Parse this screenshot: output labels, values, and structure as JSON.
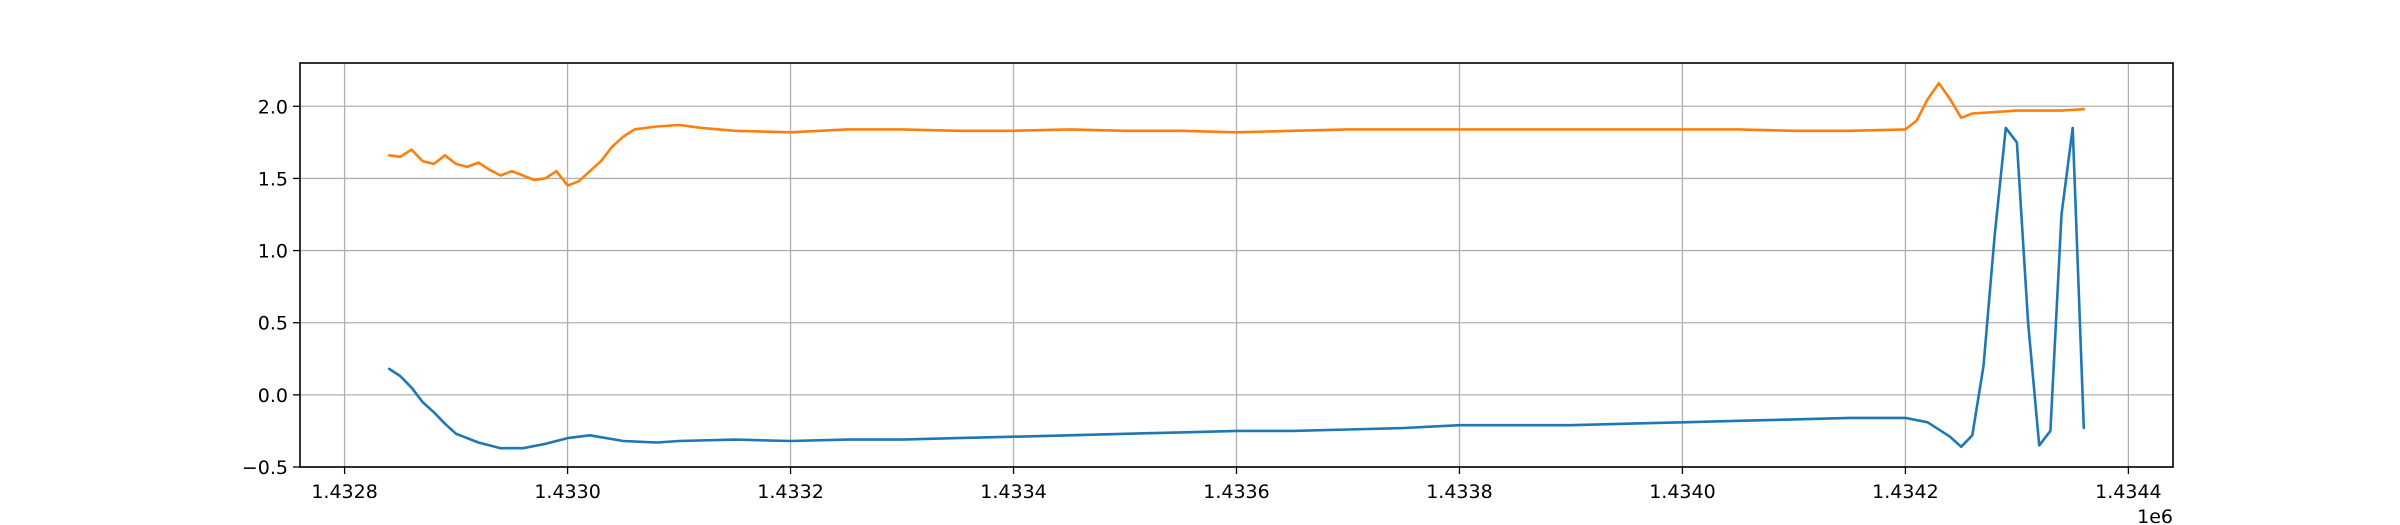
{
  "chart_data": {
    "type": "line",
    "title": "",
    "xlabel": "",
    "ylabel": "",
    "x_offset_label": "1e6",
    "xlim": [
      1.43276,
      1.43444
    ],
    "ylim": [
      -0.5,
      2.3
    ],
    "grid": true,
    "legend": "none",
    "x_ticks": [
      1.4328,
      1.433,
      1.4332,
      1.4334,
      1.4336,
      1.4338,
      1.434,
      1.4342,
      1.4344
    ],
    "x_tick_labels": [
      "1.4328",
      "1.4330",
      "1.4332",
      "1.4334",
      "1.4336",
      "1.4338",
      "1.4340",
      "1.4342",
      "1.4344"
    ],
    "y_ticks": [
      -0.5,
      0.0,
      0.5,
      1.0,
      1.5,
      2.0
    ],
    "y_tick_labels": [
      "−0.5",
      "0.0",
      "0.5",
      "1.0",
      "1.5",
      "2.0"
    ],
    "series": [
      {
        "color": "#1f77b4",
        "x": [
          1.43284,
          1.43285,
          1.43286,
          1.43287,
          1.43288,
          1.43289,
          1.4329,
          1.43292,
          1.43294,
          1.43296,
          1.43298,
          1.433,
          1.43302,
          1.43305,
          1.43308,
          1.4331,
          1.43315,
          1.4332,
          1.43325,
          1.4333,
          1.43335,
          1.4334,
          1.43345,
          1.4335,
          1.43355,
          1.4336,
          1.43365,
          1.4337,
          1.43375,
          1.4338,
          1.43385,
          1.4339,
          1.43395,
          1.434,
          1.43405,
          1.4341,
          1.43415,
          1.4342,
          1.43422,
          1.43424,
          1.43425,
          1.43426,
          1.43427,
          1.43428,
          1.43429,
          1.4343,
          1.43431,
          1.43432,
          1.43433,
          1.43434,
          1.43435,
          1.43436
        ],
        "y": [
          0.18,
          0.13,
          0.05,
          -0.05,
          -0.12,
          -0.2,
          -0.27,
          -0.33,
          -0.37,
          -0.37,
          -0.34,
          -0.3,
          -0.28,
          -0.32,
          -0.33,
          -0.32,
          -0.31,
          -0.32,
          -0.31,
          -0.31,
          -0.3,
          -0.29,
          -0.28,
          -0.27,
          -0.26,
          -0.25,
          -0.25,
          -0.24,
          -0.23,
          -0.21,
          -0.21,
          -0.21,
          -0.2,
          -0.19,
          -0.18,
          -0.17,
          -0.16,
          -0.16,
          -0.19,
          -0.29,
          -0.36,
          -0.28,
          0.2,
          1.1,
          1.85,
          1.75,
          0.5,
          -0.35,
          -0.25,
          1.25,
          1.85,
          -0.23
        ]
      },
      {
        "color": "#ff7f0e",
        "x": [
          1.43284,
          1.43285,
          1.43286,
          1.43287,
          1.43288,
          1.43289,
          1.4329,
          1.43291,
          1.43292,
          1.43293,
          1.43294,
          1.43295,
          1.43296,
          1.43297,
          1.43298,
          1.43299,
          1.433,
          1.43301,
          1.43302,
          1.43303,
          1.43304,
          1.43305,
          1.43306,
          1.43308,
          1.4331,
          1.43312,
          1.43315,
          1.4332,
          1.43325,
          1.4333,
          1.43335,
          1.4334,
          1.43345,
          1.4335,
          1.43355,
          1.4336,
          1.43365,
          1.4337,
          1.43375,
          1.4338,
          1.43385,
          1.4339,
          1.43395,
          1.434,
          1.43405,
          1.4341,
          1.43415,
          1.4342,
          1.43421,
          1.43422,
          1.43423,
          1.43424,
          1.43425,
          1.43426,
          1.43428,
          1.4343,
          1.43432,
          1.43434,
          1.43436
        ],
        "y": [
          1.66,
          1.65,
          1.7,
          1.62,
          1.6,
          1.66,
          1.6,
          1.58,
          1.61,
          1.56,
          1.52,
          1.55,
          1.52,
          1.49,
          1.5,
          1.55,
          1.45,
          1.48,
          1.55,
          1.62,
          1.72,
          1.79,
          1.84,
          1.86,
          1.87,
          1.85,
          1.83,
          1.82,
          1.84,
          1.84,
          1.83,
          1.83,
          1.84,
          1.83,
          1.83,
          1.82,
          1.83,
          1.84,
          1.84,
          1.84,
          1.84,
          1.84,
          1.84,
          1.84,
          1.84,
          1.83,
          1.83,
          1.84,
          1.9,
          2.05,
          2.16,
          2.05,
          1.92,
          1.95,
          1.96,
          1.97,
          1.97,
          1.97,
          1.98
        ]
      }
    ]
  }
}
